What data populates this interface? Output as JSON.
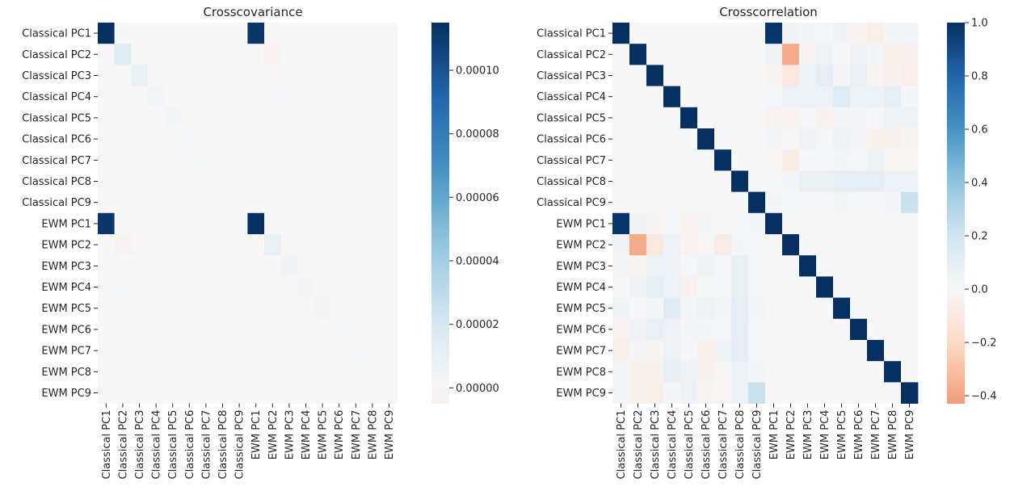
{
  "chart_data": [
    {
      "type": "heatmap",
      "title": "Crosscovariance",
      "labels": [
        "Classical PC1",
        "Classical PC2",
        "Classical PC3",
        "Classical PC4",
        "Classical PC5",
        "Classical PC6",
        "Classical PC7",
        "Classical PC8",
        "Classical PC9",
        "EWM PC1",
        "EWM PC2",
        "EWM PC3",
        "EWM PC4",
        "EWM PC5",
        "EWM PC6",
        "EWM PC7",
        "EWM PC8",
        "EWM PC9"
      ],
      "colormap": "RdBu_r (centered at 0)",
      "vmin": -5e-06,
      "vmax": 0.000115,
      "colorbar_ticks": [
        0.0,
        2e-05,
        4e-05,
        6e-05,
        8e-05,
        0.0001
      ],
      "colorbar_tick_labels": [
        "0.00000",
        "0.00002",
        "0.00004",
        "0.00006",
        "0.00008",
        "0.00010"
      ],
      "values": [
        [
          0.000115,
          0,
          0,
          0,
          0,
          0,
          0,
          0,
          0,
          0.000112,
          0,
          0,
          0,
          0,
          0,
          0,
          0,
          0
        ],
        [
          0,
          1.4e-05,
          0,
          0,
          0,
          0,
          0,
          0,
          0,
          0,
          -3e-06,
          0,
          0,
          0,
          0,
          0,
          0,
          0
        ],
        [
          0,
          0,
          8e-06,
          0,
          0,
          0,
          0,
          0,
          0,
          0,
          -1e-06,
          0,
          0,
          0,
          0,
          0,
          0,
          0
        ],
        [
          0,
          0,
          0,
          3e-06,
          0,
          0,
          0,
          0,
          0,
          0,
          1e-06,
          0,
          0,
          0,
          0,
          0,
          0,
          0
        ],
        [
          0,
          0,
          0,
          0,
          2e-06,
          0,
          0,
          0,
          0,
          0,
          0,
          0,
          0,
          0,
          0,
          0,
          0,
          0
        ],
        [
          0,
          0,
          0,
          0,
          0,
          1e-06,
          0,
          0,
          0,
          0,
          0,
          0,
          0,
          0,
          0,
          0,
          0,
          0
        ],
        [
          0,
          0,
          0,
          0,
          0,
          0,
          1e-06,
          0,
          0,
          0,
          0,
          0,
          0,
          0,
          0,
          0,
          0,
          0
        ],
        [
          0,
          0,
          0,
          0,
          0,
          0,
          0,
          1e-06,
          0,
          0,
          0,
          0,
          0,
          0,
          0,
          0,
          0,
          0
        ],
        [
          0,
          0,
          0,
          0,
          0,
          0,
          0,
          0,
          0,
          0,
          0,
          0,
          0,
          0,
          0,
          0,
          0,
          0
        ],
        [
          0.000112,
          0,
          0,
          0,
          0,
          0,
          0,
          0,
          0,
          0.000115,
          0,
          0,
          0,
          0,
          0,
          0,
          0,
          0
        ],
        [
          0,
          -3e-06,
          -1e-06,
          1e-06,
          0,
          0,
          0,
          0,
          0,
          0,
          9e-06,
          0,
          0,
          0,
          0,
          0,
          0,
          0
        ],
        [
          0,
          0,
          0,
          0,
          0,
          0,
          0,
          0,
          0,
          0,
          0,
          4e-06,
          0,
          0,
          0,
          0,
          0,
          0
        ],
        [
          0,
          1e-06,
          0,
          0,
          0,
          0,
          0,
          0,
          0,
          0,
          0,
          0,
          3e-06,
          0,
          0,
          0,
          0,
          0
        ],
        [
          0,
          0,
          0,
          1e-06,
          0,
          0,
          0,
          0,
          0,
          0,
          0,
          0,
          0,
          2e-06,
          0,
          0,
          0,
          0
        ],
        [
          0,
          0,
          0,
          0,
          0,
          0,
          0,
          0,
          0,
          0,
          0,
          0,
          0,
          0,
          1e-06,
          0,
          0,
          0
        ],
        [
          0,
          0,
          0,
          0,
          0,
          0,
          0,
          0,
          0,
          0,
          0,
          0,
          0,
          0,
          0,
          1e-06,
          0,
          0
        ],
        [
          0,
          0,
          0,
          0,
          0,
          0,
          0,
          0,
          0,
          0,
          0,
          0,
          0,
          0,
          0,
          0,
          0,
          0
        ],
        [
          0,
          0,
          0,
          0,
          0,
          0,
          0,
          0,
          0,
          0,
          0,
          0,
          0,
          0,
          0,
          0,
          0,
          0
        ]
      ]
    },
    {
      "type": "heatmap",
      "title": "Crosscorrelation",
      "labels": [
        "Classical PC1",
        "Classical PC2",
        "Classical PC3",
        "Classical PC4",
        "Classical PC5",
        "Classical PC6",
        "Classical PC7",
        "Classical PC8",
        "Classical PC9",
        "EWM PC1",
        "EWM PC2",
        "EWM PC3",
        "EWM PC4",
        "EWM PC5",
        "EWM PC6",
        "EWM PC7",
        "EWM PC8",
        "EWM PC9"
      ],
      "colormap": "RdBu_r (centered at 0)",
      "vmin": -0.43,
      "vmax": 1.0,
      "colorbar_ticks": [
        -0.4,
        -0.2,
        0.0,
        0.2,
        0.4,
        0.6,
        0.8,
        1.0
      ],
      "colorbar_tick_labels": [
        "−0.4",
        "−0.2",
        "0.0",
        "0.2",
        "0.4",
        "0.6",
        "0.8",
        "1.0"
      ],
      "values": [
        [
          1,
          0,
          0,
          0,
          0,
          0,
          0,
          0,
          0,
          0.98,
          0.03,
          0.02,
          0.01,
          0.03,
          -0.03,
          -0.06,
          0.02,
          0.02
        ],
        [
          0,
          1,
          0,
          0,
          0,
          0,
          0,
          0,
          0,
          0.04,
          -0.38,
          -0.02,
          0.04,
          0.0,
          0.04,
          0.02,
          -0.04,
          -0.04
        ],
        [
          0,
          0,
          1,
          0,
          0,
          0,
          0,
          0,
          0,
          -0.02,
          -0.1,
          0.06,
          0.1,
          0.02,
          0.08,
          -0.02,
          -0.04,
          -0.06
        ],
        [
          0,
          0,
          0,
          1,
          0,
          0,
          0,
          0,
          0,
          0.01,
          0.06,
          0.06,
          0.06,
          0.12,
          0.06,
          0.06,
          0.1,
          0.02
        ],
        [
          0,
          0,
          0,
          0,
          1,
          0,
          0,
          0,
          0,
          -0.03,
          -0.03,
          0.01,
          -0.04,
          0.02,
          0.02,
          0.01,
          0.06,
          0.06
        ],
        [
          0,
          0,
          0,
          0,
          0,
          1,
          0,
          0,
          0,
          0.02,
          -0.01,
          0.04,
          0.01,
          0.06,
          0.02,
          -0.04,
          -0.04,
          -0.02
        ],
        [
          0,
          0,
          0,
          0,
          0,
          0,
          1,
          0,
          0,
          -0.01,
          -0.08,
          0.01,
          0.01,
          0.02,
          0.01,
          0.05,
          -0.01,
          -0.01
        ],
        [
          0,
          0,
          0,
          0,
          0,
          0,
          0,
          1,
          0,
          0.01,
          0.02,
          0.08,
          0.08,
          0.1,
          0.1,
          0.1,
          0.06,
          0.06
        ],
        [
          0,
          0,
          0,
          0,
          0,
          0,
          0,
          0,
          1,
          0.02,
          0.01,
          0.01,
          0.01,
          0.02,
          0.01,
          0.01,
          0.02,
          0.22
        ],
        [
          0.98,
          0.04,
          -0.02,
          0.01,
          -0.03,
          0.02,
          -0.01,
          0.01,
          0.02,
          1,
          0,
          0,
          0,
          0,
          0,
          0,
          0,
          0
        ],
        [
          0.03,
          -0.38,
          -0.1,
          0.06,
          -0.03,
          -0.01,
          -0.08,
          0.02,
          0.01,
          0,
          1,
          0,
          0,
          0,
          0,
          0,
          0,
          0
        ],
        [
          0.02,
          -0.02,
          0.06,
          0.06,
          0.01,
          0.04,
          0.01,
          0.08,
          0.01,
          0,
          0,
          1,
          0,
          0,
          0,
          0,
          0,
          0
        ],
        [
          0.01,
          0.04,
          0.1,
          0.06,
          -0.04,
          0.01,
          0.01,
          0.08,
          0.01,
          0,
          0,
          0,
          1,
          0,
          0,
          0,
          0,
          0
        ],
        [
          0.03,
          0.0,
          0.02,
          0.12,
          0.02,
          0.06,
          0.02,
          0.1,
          0.02,
          0,
          0,
          0,
          0,
          1,
          0,
          0,
          0,
          0
        ],
        [
          -0.03,
          0.04,
          0.08,
          0.06,
          0.02,
          0.02,
          0.01,
          0.1,
          0.01,
          0,
          0,
          0,
          0,
          0,
          1,
          0,
          0,
          0
        ],
        [
          -0.06,
          0.02,
          -0.02,
          0.06,
          0.01,
          -0.04,
          0.05,
          0.1,
          0.01,
          0,
          0,
          0,
          0,
          0,
          0,
          1,
          0,
          0
        ],
        [
          0.02,
          -0.04,
          -0.04,
          0.1,
          0.06,
          -0.04,
          -0.01,
          0.06,
          0.02,
          0,
          0,
          0,
          0,
          0,
          0,
          0,
          1,
          0
        ],
        [
          0.02,
          -0.04,
          -0.06,
          0.02,
          0.06,
          -0.02,
          -0.01,
          0.06,
          0.22,
          0,
          0,
          0,
          0,
          0,
          0,
          0,
          0,
          1
        ]
      ]
    }
  ]
}
